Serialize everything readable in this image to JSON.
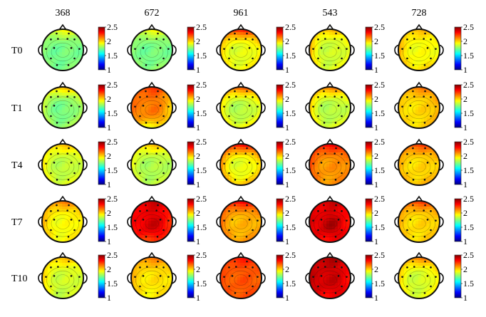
{
  "chart_data": {
    "type": "heatmap",
    "subtype": "scalp topography grid",
    "columns": [
      "368",
      "672",
      "961",
      "543",
      "728"
    ],
    "rows": [
      "T0",
      "T1",
      "T4",
      "T7",
      "T10"
    ],
    "colorbar": {
      "range": [
        1,
        2.5
      ],
      "ticks": [
        "1",
        "1.5",
        "2",
        "2.5"
      ],
      "colormap": "jet"
    },
    "maps": [
      [
        {
          "base": 1.72,
          "front": 1.95,
          "back": 1.75,
          "left": 1.75,
          "right": 1.75,
          "peak": 0.02
        },
        {
          "base": 1.72,
          "front": 1.95,
          "back": 1.78,
          "left": 1.75,
          "right": 1.75,
          "peak": 0.02
        },
        {
          "base": 1.85,
          "front": 2.3,
          "back": 1.95,
          "left": 2.0,
          "right": 2.0,
          "peak": 0.05
        },
        {
          "base": 1.82,
          "front": 2.05,
          "back": 1.9,
          "left": 2.05,
          "right": 1.95,
          "peak": 0.05
        },
        {
          "base": 1.9,
          "front": 2.05,
          "back": 2.0,
          "left": 2.05,
          "right": 1.95,
          "peak": 0.03
        }
      ],
      [
        {
          "base": 1.72,
          "front": 2.05,
          "back": 1.8,
          "left": 1.85,
          "right": 1.85,
          "peak": 0.02
        },
        {
          "base": 2.1,
          "front": 2.25,
          "back": 1.9,
          "left": 2.15,
          "right": 2.0,
          "peak": 0.05
        },
        {
          "base": 1.8,
          "front": 2.2,
          "back": 1.95,
          "left": 1.95,
          "right": 1.95,
          "peak": 0.03
        },
        {
          "base": 1.8,
          "front": 2.15,
          "back": 1.9,
          "left": 2.0,
          "right": 1.9,
          "peak": 0.03
        },
        {
          "base": 1.95,
          "front": 2.15,
          "back": 2.0,
          "left": 2.0,
          "right": 2.1,
          "peak": 0.05
        }
      ],
      [
        {
          "base": 1.82,
          "front": 2.05,
          "back": 1.9,
          "left": 1.95,
          "right": 1.9,
          "peak": 0.02
        },
        {
          "base": 1.8,
          "front": 2.05,
          "back": 1.85,
          "left": 1.9,
          "right": 1.85,
          "peak": 0.02
        },
        {
          "base": 1.85,
          "front": 2.35,
          "back": 2.05,
          "left": 2.1,
          "right": 2.05,
          "peak": 0.05
        },
        {
          "base": 2.05,
          "front": 2.35,
          "back": 2.1,
          "left": 2.2,
          "right": 2.15,
          "peak": 0.05
        },
        {
          "base": 1.95,
          "front": 2.25,
          "back": 2.05,
          "left": 2.05,
          "right": 2.05,
          "peak": 0.05
        }
      ],
      [
        {
          "base": 1.9,
          "front": 2.15,
          "back": 1.95,
          "left": 2.05,
          "right": 2.0,
          "peak": 0.03
        },
        {
          "base": 2.3,
          "front": 2.4,
          "back": 2.2,
          "left": 2.3,
          "right": 2.25,
          "peak": 0.1
        },
        {
          "base": 2.0,
          "front": 2.35,
          "back": 2.1,
          "left": 2.15,
          "right": 2.1,
          "peak": 0.05
        },
        {
          "base": 2.3,
          "front": 2.4,
          "back": 2.3,
          "left": 2.35,
          "right": 2.3,
          "peak": 0.15
        },
        {
          "base": 1.95,
          "front": 2.25,
          "back": 2.0,
          "left": 2.05,
          "right": 2.05,
          "peak": 0.05
        }
      ],
      [
        {
          "base": 1.85,
          "front": 2.05,
          "back": 1.85,
          "left": 2.0,
          "right": 1.9,
          "peak": 0.02
        },
        {
          "base": 1.95,
          "front": 2.15,
          "back": 1.95,
          "left": 2.05,
          "right": 2.0,
          "peak": 0.03
        },
        {
          "base": 2.15,
          "front": 2.3,
          "back": 2.2,
          "left": 2.2,
          "right": 2.2,
          "peak": 0.05
        },
        {
          "base": 2.35,
          "front": 2.45,
          "back": 2.3,
          "left": 2.4,
          "right": 2.3,
          "peak": 0.05
        },
        {
          "base": 1.85,
          "front": 2.15,
          "back": 1.9,
          "left": 2.0,
          "right": 2.0,
          "peak": 0.02
        }
      ]
    ]
  }
}
